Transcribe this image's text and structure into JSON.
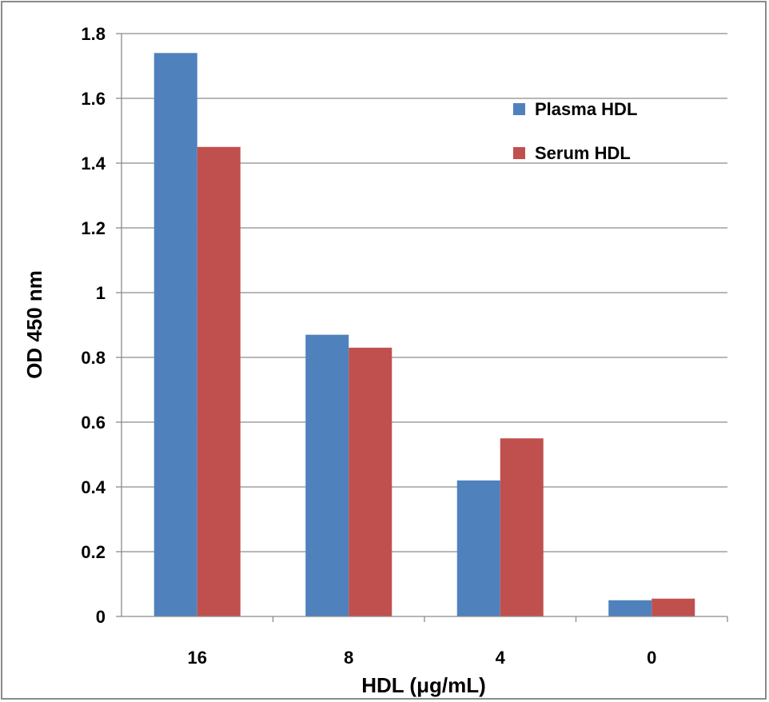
{
  "chart_data": {
    "type": "bar",
    "title": "",
    "xlabel": "HDL (μg/mL)",
    "ylabel": "OD 450 nm",
    "categories": [
      "16",
      "8",
      "4",
      "0"
    ],
    "series": [
      {
        "name": "Plasma HDL",
        "values": [
          1.74,
          0.87,
          0.42,
          0.05
        ],
        "color": "#4f81bd"
      },
      {
        "name": "Serum HDL",
        "values": [
          1.45,
          0.83,
          0.55,
          0.055
        ],
        "color": "#c0504d"
      }
    ],
    "ylim": [
      0,
      1.8
    ],
    "yticks": [
      "0",
      "0.2",
      "0.4",
      "0.6",
      "0.8",
      "1",
      "1.2",
      "1.4",
      "1.6",
      "1.8"
    ],
    "grid": true,
    "legend_position": "top-right"
  }
}
